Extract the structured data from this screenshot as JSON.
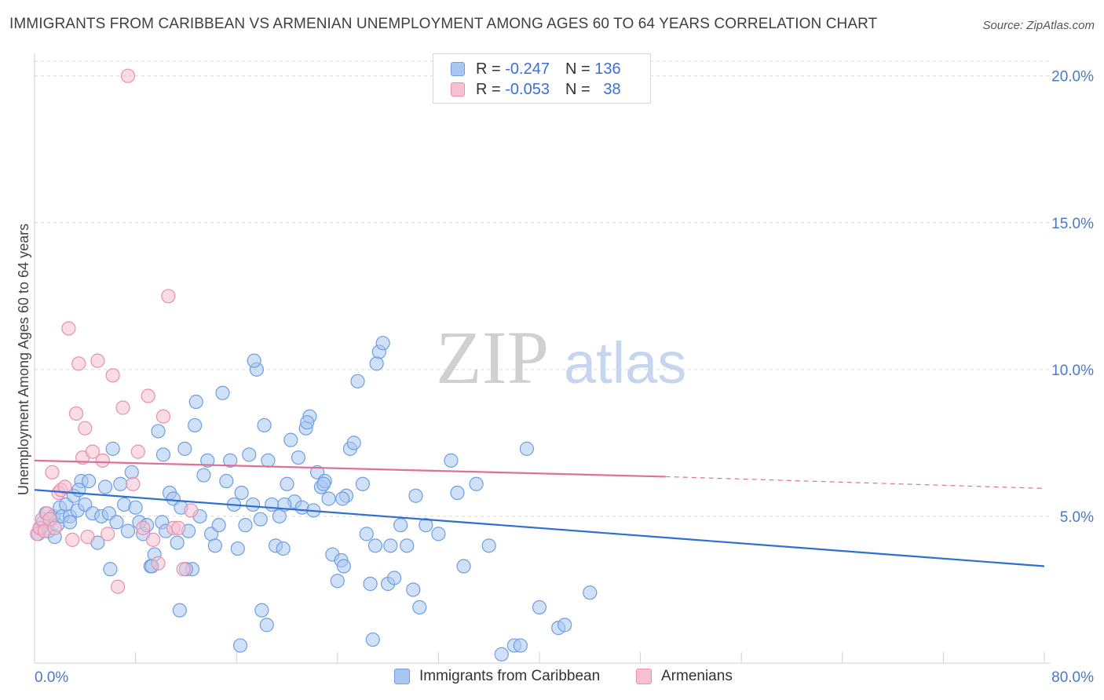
{
  "title": "IMMIGRANTS FROM CARIBBEAN VS ARMENIAN UNEMPLOYMENT AMONG AGES 60 TO 64 YEARS CORRELATION CHART",
  "source": "Source: ZipAtlas.com",
  "watermark": {
    "zip": "ZIP",
    "atlas": "atlas"
  },
  "legend_top": {
    "rows": [
      {
        "r_label": "R =",
        "r_value": "-0.247",
        "n_label": "N =",
        "n_value": "136"
      },
      {
        "r_label": "R =",
        "r_value": "-0.053",
        "n_label": "N =",
        "n_value": "38"
      }
    ]
  },
  "legend_bottom": [
    "Immigrants from Caribbean",
    "Armenians"
  ],
  "colors": {
    "blue_fill": "#a9c6f0",
    "blue_stroke": "#6e9fe0",
    "blue_line": "#2f6fd0",
    "pink_fill": "#f6c0d0",
    "pink_stroke": "#e890ac",
    "pink_line": "#e0709a",
    "tick_text": "#4a78c8",
    "grid": "#d8d8d8"
  },
  "chart_data": {
    "type": "scatter",
    "title": "IMMIGRANTS FROM CARIBBEAN VS ARMENIAN UNEMPLOYMENT AMONG AGES 60 TO 64 YEARS CORRELATION CHART",
    "xlabel": "",
    "ylabel": "Unemployment Among Ages 60 to 64 years",
    "xlim": [
      0,
      80
    ],
    "ylim": [
      0,
      20.5
    ],
    "x_tick_labels": [
      "0.0%",
      "80.0%"
    ],
    "y_ticks": [
      5,
      10,
      15,
      20
    ],
    "y_tick_labels": [
      "5.0%",
      "10.0%",
      "15.0%",
      "20.0%"
    ],
    "grid": "horizontal dashed",
    "legend_placement": "top-center",
    "series": [
      {
        "name": "Immigrants from Caribbean",
        "color": "#a9c6f0",
        "trend": {
          "x": [
            0,
            80
          ],
          "y": [
            5.9,
            3.3
          ],
          "style": "solid"
        },
        "points": [
          [
            0.3,
            4.4
          ],
          [
            0.5,
            4.6
          ],
          [
            0.7,
            4.8
          ],
          [
            0.9,
            5.1
          ],
          [
            1.1,
            4.5
          ],
          [
            1.3,
            4.9
          ],
          [
            1.5,
            5.0
          ],
          [
            1.8,
            4.7
          ],
          [
            2.0,
            5.3
          ],
          [
            2.2,
            5.0
          ],
          [
            2.5,
            5.4
          ],
          [
            2.8,
            5.0
          ],
          [
            3.1,
            5.7
          ],
          [
            3.4,
            5.2
          ],
          [
            3.7,
            6.2
          ],
          [
            4.0,
            5.4
          ],
          [
            4.3,
            6.2
          ],
          [
            4.6,
            5.1
          ],
          [
            5.0,
            4.1
          ],
          [
            5.3,
            5.0
          ],
          [
            5.6,
            6.0
          ],
          [
            5.9,
            5.1
          ],
          [
            6.2,
            7.3
          ],
          [
            6.5,
            4.8
          ],
          [
            6.8,
            6.1
          ],
          [
            7.1,
            5.4
          ],
          [
            7.4,
            4.5
          ],
          [
            7.7,
            6.5
          ],
          [
            8.0,
            5.3
          ],
          [
            8.3,
            4.8
          ],
          [
            8.6,
            4.4
          ],
          [
            8.9,
            4.7
          ],
          [
            9.2,
            3.3
          ],
          [
            9.5,
            3.7
          ],
          [
            9.8,
            7.9
          ],
          [
            10.1,
            4.8
          ],
          [
            10.4,
            4.5
          ],
          [
            10.7,
            5.8
          ],
          [
            11.0,
            5.6
          ],
          [
            11.3,
            4.1
          ],
          [
            11.6,
            5.3
          ],
          [
            11.9,
            7.3
          ],
          [
            12.2,
            4.5
          ],
          [
            12.5,
            3.2
          ],
          [
            12.8,
            8.9
          ],
          [
            13.1,
            5.0
          ],
          [
            13.4,
            6.4
          ],
          [
            13.7,
            6.9
          ],
          [
            14.0,
            4.4
          ],
          [
            14.3,
            4.0
          ],
          [
            14.6,
            4.7
          ],
          [
            14.9,
            9.2
          ],
          [
            15.2,
            6.2
          ],
          [
            15.5,
            6.9
          ],
          [
            15.8,
            5.4
          ],
          [
            16.1,
            3.9
          ],
          [
            16.4,
            5.8
          ],
          [
            16.7,
            4.7
          ],
          [
            17.0,
            7.1
          ],
          [
            17.3,
            5.4
          ],
          [
            17.6,
            10.0
          ],
          [
            17.9,
            4.9
          ],
          [
            18.2,
            8.1
          ],
          [
            18.5,
            6.9
          ],
          [
            18.8,
            5.4
          ],
          [
            19.1,
            4.0
          ],
          [
            19.4,
            5.0
          ],
          [
            19.7,
            3.9
          ],
          [
            20.0,
            6.1
          ],
          [
            20.3,
            7.6
          ],
          [
            20.6,
            5.5
          ],
          [
            20.9,
            7.0
          ],
          [
            21.2,
            5.3
          ],
          [
            21.5,
            8.0
          ],
          [
            21.8,
            8.4
          ],
          [
            22.1,
            5.2
          ],
          [
            22.4,
            6.5
          ],
          [
            22.7,
            6.0
          ],
          [
            23.0,
            6.2
          ],
          [
            23.3,
            5.6
          ],
          [
            23.6,
            3.7
          ],
          [
            24.0,
            2.8
          ],
          [
            24.3,
            3.5
          ],
          [
            24.7,
            5.7
          ],
          [
            25.0,
            7.3
          ],
          [
            25.3,
            7.5
          ],
          [
            25.6,
            9.6
          ],
          [
            26.0,
            6.1
          ],
          [
            26.3,
            4.4
          ],
          [
            26.6,
            2.7
          ],
          [
            27.0,
            4.0
          ],
          [
            27.3,
            10.6
          ],
          [
            27.6,
            10.9
          ],
          [
            28.0,
            2.7
          ],
          [
            28.5,
            2.9
          ],
          [
            29.0,
            4.7
          ],
          [
            29.5,
            4.0
          ],
          [
            30.0,
            2.5
          ],
          [
            30.5,
            1.9
          ],
          [
            31.0,
            4.7
          ],
          [
            32.0,
            4.4
          ],
          [
            33.0,
            6.9
          ],
          [
            33.5,
            5.8
          ],
          [
            34.0,
            3.3
          ],
          [
            35.0,
            6.1
          ],
          [
            36.0,
            4.0
          ],
          [
            37.0,
            0.3
          ],
          [
            38.0,
            0.6
          ],
          [
            38.5,
            0.6
          ],
          [
            39.0,
            7.3
          ],
          [
            40.0,
            1.9
          ],
          [
            41.5,
            1.2
          ],
          [
            42.0,
            1.3
          ],
          [
            44.0,
            2.4
          ],
          [
            26.8,
            0.8
          ],
          [
            17.4,
            10.3
          ],
          [
            27.1,
            10.2
          ],
          [
            9.3,
            3.3
          ],
          [
            21.6,
            8.2
          ],
          [
            24.4,
            5.6
          ],
          [
            28.2,
            4.0
          ],
          [
            12.0,
            3.2
          ],
          [
            18.0,
            1.8
          ],
          [
            18.4,
            1.3
          ],
          [
            24.5,
            3.3
          ],
          [
            16.3,
            0.6
          ],
          [
            11.5,
            1.8
          ],
          [
            6.0,
            3.2
          ],
          [
            3.5,
            5.9
          ],
          [
            2.8,
            4.8
          ],
          [
            10.2,
            7.1
          ],
          [
            19.8,
            5.4
          ],
          [
            22.9,
            6.1
          ],
          [
            30.2,
            5.7
          ],
          [
            12.7,
            8.1
          ],
          [
            1.6,
            4.3
          ]
        ]
      },
      {
        "name": "Armenians",
        "color": "#f6c0d0",
        "trend": {
          "x": [
            0,
            50
          ],
          "y": [
            6.9,
            6.35
          ],
          "style": "solid",
          "extension": {
            "x": [
              50,
              80
            ],
            "y": [
              6.35,
              5.95
            ],
            "style": "dashed"
          }
        },
        "points": [
          [
            0.2,
            4.4
          ],
          [
            0.4,
            4.6
          ],
          [
            0.6,
            4.9
          ],
          [
            0.8,
            4.5
          ],
          [
            1.0,
            5.1
          ],
          [
            1.2,
            4.9
          ],
          [
            1.4,
            6.5
          ],
          [
            1.6,
            4.6
          ],
          [
            1.9,
            5.8
          ],
          [
            2.1,
            5.9
          ],
          [
            2.4,
            6.0
          ],
          [
            2.7,
            11.4
          ],
          [
            3.0,
            4.2
          ],
          [
            3.3,
            8.5
          ],
          [
            3.5,
            10.2
          ],
          [
            3.8,
            7.0
          ],
          [
            4.0,
            8.0
          ],
          [
            4.2,
            4.3
          ],
          [
            4.6,
            7.2
          ],
          [
            5.0,
            10.3
          ],
          [
            5.4,
            6.9
          ],
          [
            5.8,
            4.4
          ],
          [
            6.2,
            9.8
          ],
          [
            6.6,
            2.6
          ],
          [
            7.0,
            8.7
          ],
          [
            7.4,
            20.0
          ],
          [
            7.8,
            6.1
          ],
          [
            8.2,
            7.2
          ],
          [
            8.6,
            4.6
          ],
          [
            9.0,
            9.1
          ],
          [
            9.4,
            4.2
          ],
          [
            9.8,
            3.4
          ],
          [
            10.2,
            8.4
          ],
          [
            10.6,
            12.5
          ],
          [
            11.0,
            4.6
          ],
          [
            11.4,
            4.6
          ],
          [
            11.8,
            3.2
          ],
          [
            12.4,
            5.2
          ]
        ]
      }
    ]
  }
}
